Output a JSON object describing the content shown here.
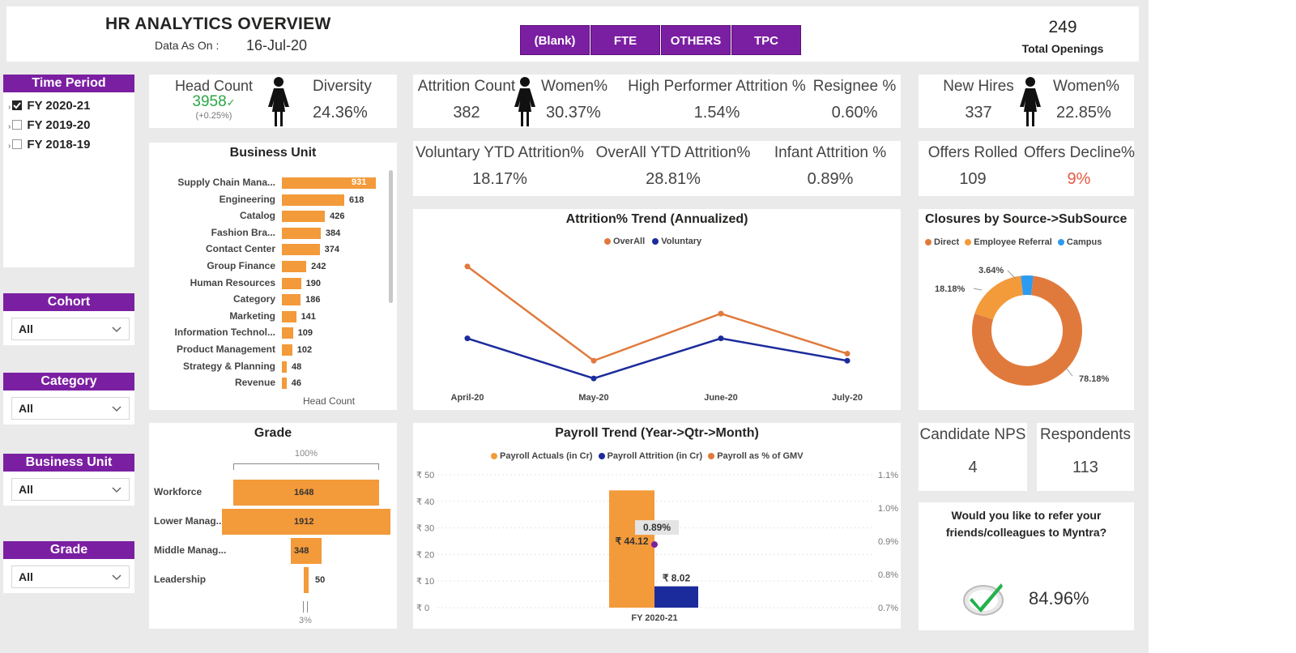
{
  "header": {
    "title": "HR ANALYTICS OVERVIEW",
    "data_as_on_label": "Data As On :",
    "data_as_on_value": "16-Jul-20",
    "filters": [
      "(Blank)",
      "FTE",
      "OTHERS",
      "TPC"
    ],
    "total_openings_value": "249",
    "total_openings_label": "Total Openings"
  },
  "slicers": {
    "time_period": {
      "title": "Time Period",
      "items": [
        {
          "label": "FY 2020-21",
          "checked": true
        },
        {
          "label": "FY 2019-20",
          "checked": false
        },
        {
          "label": "FY 2018-19",
          "checked": false
        }
      ]
    },
    "cohort": {
      "title": "Cohort",
      "value": "All"
    },
    "category": {
      "title": "Category",
      "value": "All"
    },
    "business_unit": {
      "title": "Business Unit",
      "value": "All"
    },
    "grade": {
      "title": "Grade",
      "value": "All"
    }
  },
  "kpis": {
    "head_count_label": "Head Count",
    "head_count_value": "3958",
    "head_count_change": "(+0.25%)",
    "diversity_label": "Diversity",
    "diversity_value": "24.36%",
    "attrition_count_label": "Attrition Count",
    "attrition_count_value": "382",
    "attrition_women_label": "Women%",
    "attrition_women_value": "30.37%",
    "high_performer_label": "High Performer Attrition %",
    "high_performer_value": "1.54%",
    "resignee_label": "Resignee %",
    "resignee_value": "0.60%",
    "new_hires_label": "New Hires",
    "new_hires_value": "337",
    "new_hires_women_label": "Women%",
    "new_hires_women_value": "22.85%",
    "voluntary_label": "Voluntary YTD Attrition%",
    "voluntary_value": "18.17%",
    "overall_label": "OverAll YTD Attrition%",
    "overall_value": "28.81%",
    "infant_label": "Infant Attrition %",
    "infant_value": "0.89%",
    "offers_rolled_label": "Offers Rolled",
    "offers_rolled_value": "109",
    "offers_decline_label": "Offers Decline%",
    "offers_decline_value": "9%",
    "candidate_nps_label": "Candidate NPS",
    "candidate_nps_value": "4",
    "respondents_label": "Respondents",
    "respondents_value": "113",
    "refer_question": "Would you like to refer your friends/colleagues to Myntra?",
    "refer_value": "84.96%"
  },
  "colors": {
    "purple": "#7b1fa2",
    "orange": "#f39a3a",
    "dark_orange": "#e07a3c",
    "navy": "#1c2b9b",
    "light_blue": "#2d9bf0",
    "green": "#2aa745",
    "red": "#e9573f"
  },
  "chart_data": [
    {
      "id": "business_unit",
      "type": "bar",
      "title": "Business Unit",
      "xlabel": "Head Count",
      "categories": [
        "Supply Chain Mana...",
        "Engineering",
        "Catalog",
        "Fashion Bra...",
        "Contact Center",
        "Group Finance",
        "Human Resources",
        "Category",
        "Marketing",
        "Information Technol...",
        "Product Management",
        "Strategy & Planning",
        "Revenue"
      ],
      "values": [
        931,
        618,
        426,
        384,
        374,
        242,
        190,
        186,
        141,
        109,
        102,
        48,
        46
      ]
    },
    {
      "id": "grade",
      "type": "bar",
      "title": "Grade",
      "top_label": "100%",
      "bottom_label": "3%",
      "categories": [
        "Workforce",
        "Lower Manag...",
        "Middle Manag...",
        "Leadership"
      ],
      "values": [
        1648,
        1912,
        348,
        50
      ]
    },
    {
      "id": "attrition_trend",
      "type": "line",
      "title": "Attrition% Trend (Annualized)",
      "categories": [
        "April-20",
        "May-20",
        "June-20",
        "July-20"
      ],
      "series": [
        {
          "name": "OverAll",
          "values": [
            37.5,
            21.5,
            29.5,
            22.7
          ]
        },
        {
          "name": "Voluntary",
          "values": [
            25.3,
            18.5,
            25.3,
            21.5
          ]
        }
      ]
    },
    {
      "id": "closures",
      "type": "pie",
      "title": "Closures by Source->SubSource",
      "labels": [
        "Direct",
        "Employee Referral",
        "Campus"
      ],
      "values": [
        78.18,
        18.18,
        3.64
      ],
      "value_labels": [
        "78.18%",
        "18.18%",
        "3.64%"
      ]
    },
    {
      "id": "payroll",
      "type": "bar",
      "title": "Payroll Trend (Year->Qtr->Month)",
      "categories": [
        "FY 2020-21"
      ],
      "series": [
        {
          "name": "Payroll Actuals (in Cr)",
          "values": [
            44.12
          ],
          "label": "₹ 44.12"
        },
        {
          "name": "Payroll Attrition (in Cr)",
          "values": [
            8.02
          ],
          "label": "₹ 8.02"
        },
        {
          "name": "Payroll as % of GMV",
          "values": [
            0.89
          ],
          "label": "0.89%"
        }
      ],
      "ylim": [
        0,
        50
      ],
      "y_ticks": [
        "₹ 0",
        "₹ 10",
        "₹ 20",
        "₹ 30",
        "₹ 40",
        "₹ 50"
      ],
      "y2lim": [
        0.7,
        1.1
      ],
      "y2_ticks": [
        "0.7%",
        "0.8%",
        "0.9%",
        "1.0%",
        "1.1%"
      ]
    }
  ]
}
